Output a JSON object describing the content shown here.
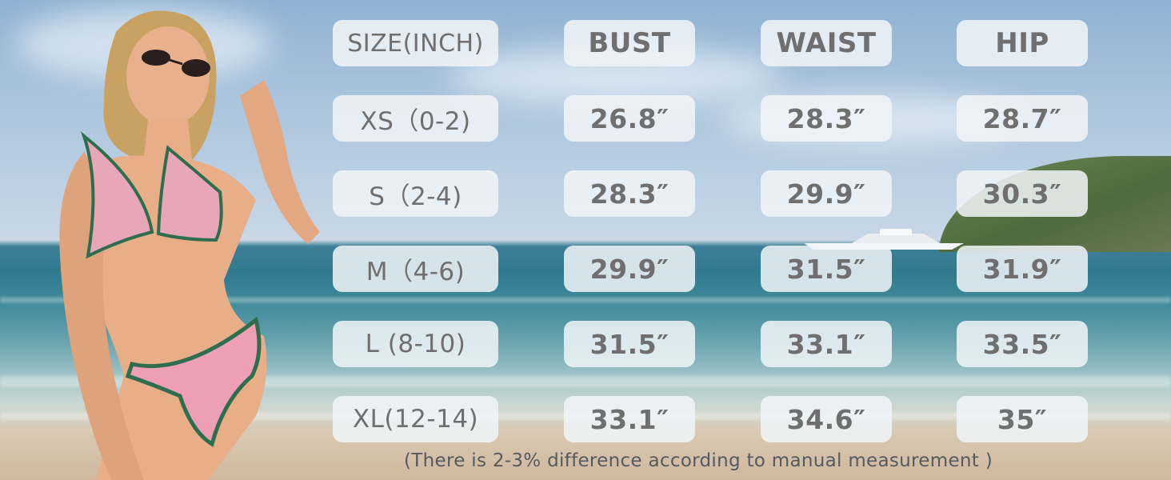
{
  "size_chart": {
    "headers": [
      "SIZE(INCH)",
      "BUST",
      "WAIST",
      "HIP"
    ],
    "rows": [
      [
        "XS（0-2)",
        "26.8″",
        "28.3″",
        "28.7″"
      ],
      [
        "S（2-4)",
        "28.3″",
        "29.9″",
        "30.3″"
      ],
      [
        "M（4-6)",
        "29.9″",
        "31.5″",
        "31.9″"
      ],
      [
        "L (8-10)",
        "31.5″",
        "33.1″",
        "33.5″"
      ],
      [
        "XL(12-14)",
        "33.1″",
        "34.6″",
        "35″"
      ]
    ]
  },
  "note": "(There is 2-3% difference according to manual measurement )",
  "colors": {
    "cell_background": "#f0f4f8",
    "cell_text": "#6f6f6f",
    "note_text": "#555a5f"
  }
}
